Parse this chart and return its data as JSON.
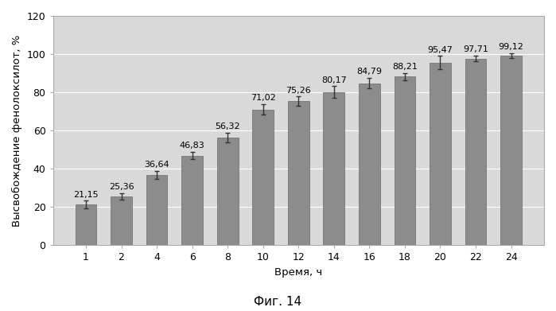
{
  "categories": [
    1,
    2,
    4,
    6,
    8,
    10,
    12,
    14,
    16,
    18,
    20,
    22,
    24
  ],
  "values": [
    21.15,
    25.36,
    36.64,
    46.83,
    56.32,
    71.02,
    75.26,
    80.17,
    84.79,
    88.21,
    95.47,
    97.71,
    99.12
  ],
  "errors": [
    2.0,
    1.8,
    2.2,
    2.0,
    2.5,
    2.8,
    2.5,
    3.0,
    2.8,
    2.0,
    3.5,
    1.5,
    1.2
  ],
  "bar_color": "#8c8c8c",
  "bar_edge_color": "#6a6a6a",
  "error_color": "#333333",
  "xlabel": "Время, ч",
  "ylabel": "Высвобождение фенолоксилот, %",
  "caption": "Фиг. 14",
  "ylim": [
    0,
    120
  ],
  "yticks": [
    0,
    20,
    40,
    60,
    80,
    100,
    120
  ],
  "plot_bg_color": "#d9d9d9",
  "fig_background": "#ffffff",
  "label_fontsize": 8.0,
  "axis_label_fontsize": 9.5,
  "tick_fontsize": 9,
  "caption_fontsize": 11,
  "grid_color": "#ffffff",
  "border_color": "#aaaaaa"
}
